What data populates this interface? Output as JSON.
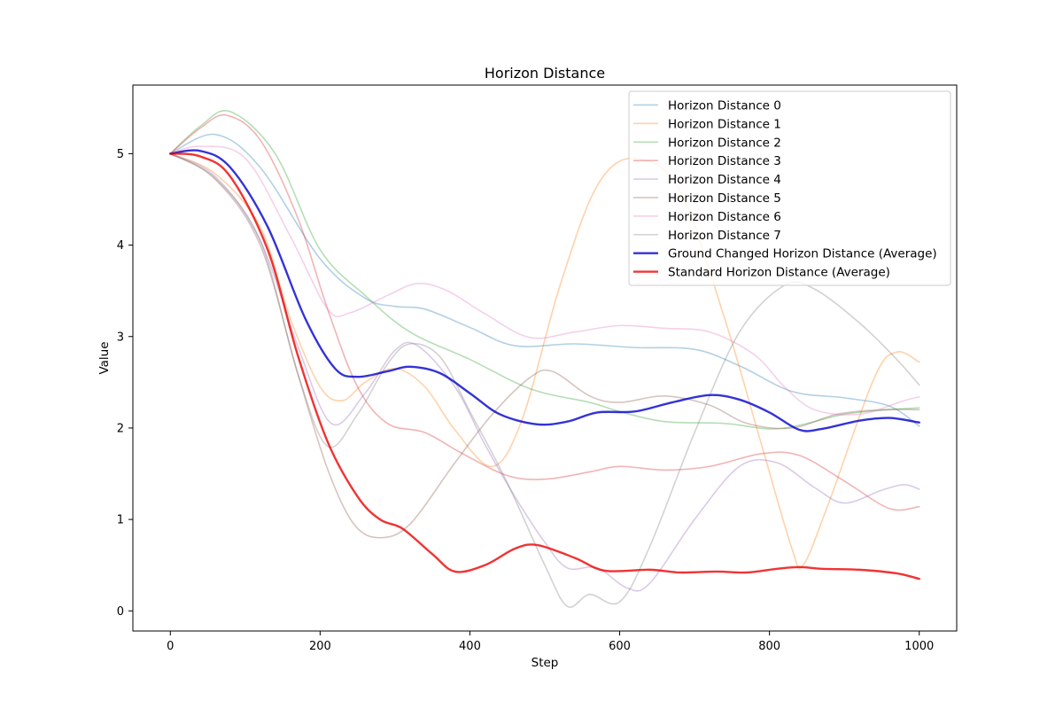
{
  "chart_data": {
    "type": "line",
    "title": "Horizon Distance",
    "xlabel": "Step",
    "ylabel": "Value",
    "xlim": [
      -50,
      1050
    ],
    "ylim": [
      -0.22,
      5.75
    ],
    "xticks": [
      0,
      200,
      400,
      600,
      800,
      1000
    ],
    "yticks": [
      0,
      1,
      2,
      3,
      4,
      5
    ],
    "legend_position": "top-right",
    "grid": false,
    "series": [
      {
        "name": "Horizon Distance 0",
        "color": "#1f77b4",
        "alpha": 0.35,
        "width": 1.6,
        "points": [
          [
            0,
            5.0
          ],
          [
            60,
            5.21
          ],
          [
            120,
            4.85
          ],
          [
            200,
            3.85
          ],
          [
            260,
            3.42
          ],
          [
            300,
            3.33
          ],
          [
            340,
            3.3
          ],
          [
            400,
            3.1
          ],
          [
            460,
            2.9
          ],
          [
            540,
            2.92
          ],
          [
            620,
            2.88
          ],
          [
            700,
            2.86
          ],
          [
            760,
            2.68
          ],
          [
            830,
            2.4
          ],
          [
            900,
            2.33
          ],
          [
            960,
            2.24
          ],
          [
            1000,
            2.02
          ]
        ]
      },
      {
        "name": "Horizon Distance 1",
        "color": "#ff7f0e",
        "alpha": 0.35,
        "width": 1.6,
        "points": [
          [
            0,
            5.0
          ],
          [
            60,
            4.78
          ],
          [
            120,
            4.2
          ],
          [
            160,
            3.2
          ],
          [
            200,
            2.45
          ],
          [
            230,
            2.3
          ],
          [
            260,
            2.5
          ],
          [
            300,
            2.65
          ],
          [
            340,
            2.45
          ],
          [
            380,
            1.98
          ],
          [
            430,
            1.58
          ],
          [
            470,
            2.1
          ],
          [
            520,
            3.55
          ],
          [
            570,
            4.65
          ],
          [
            620,
            4.95
          ],
          [
            680,
            4.6
          ],
          [
            740,
            3.2
          ],
          [
            790,
            1.8
          ],
          [
            830,
            0.68
          ],
          [
            845,
            0.5
          ],
          [
            880,
            1.2
          ],
          [
            940,
            2.55
          ],
          [
            970,
            2.83
          ],
          [
            1000,
            2.72
          ]
        ]
      },
      {
        "name": "Horizon Distance 2",
        "color": "#2ca02c",
        "alpha": 0.35,
        "width": 1.6,
        "points": [
          [
            0,
            5.0
          ],
          [
            40,
            5.3
          ],
          [
            80,
            5.46
          ],
          [
            140,
            5.0
          ],
          [
            200,
            3.95
          ],
          [
            260,
            3.45
          ],
          [
            320,
            3.05
          ],
          [
            400,
            2.75
          ],
          [
            460,
            2.5
          ],
          [
            500,
            2.38
          ],
          [
            560,
            2.28
          ],
          [
            600,
            2.18
          ],
          [
            660,
            2.07
          ],
          [
            740,
            2.05
          ],
          [
            800,
            1.99
          ],
          [
            840,
            2.03
          ],
          [
            900,
            2.15
          ],
          [
            960,
            2.2
          ],
          [
            1000,
            2.22
          ]
        ]
      },
      {
        "name": "Horizon Distance 3",
        "color": "#d62728",
        "alpha": 0.35,
        "width": 1.6,
        "points": [
          [
            0,
            5.0
          ],
          [
            40,
            5.28
          ],
          [
            75,
            5.42
          ],
          [
            120,
            5.15
          ],
          [
            170,
            4.3
          ],
          [
            210,
            3.3
          ],
          [
            250,
            2.45
          ],
          [
            290,
            2.05
          ],
          [
            340,
            1.95
          ],
          [
            390,
            1.72
          ],
          [
            450,
            1.48
          ],
          [
            500,
            1.44
          ],
          [
            560,
            1.52
          ],
          [
            600,
            1.58
          ],
          [
            660,
            1.54
          ],
          [
            720,
            1.58
          ],
          [
            790,
            1.72
          ],
          [
            840,
            1.7
          ],
          [
            900,
            1.42
          ],
          [
            960,
            1.12
          ],
          [
            1000,
            1.14
          ]
        ]
      },
      {
        "name": "Horizon Distance 4",
        "color": "#9467bd",
        "alpha": 0.35,
        "width": 1.6,
        "points": [
          [
            0,
            5.0
          ],
          [
            60,
            4.75
          ],
          [
            120,
            4.05
          ],
          [
            170,
            2.9
          ],
          [
            215,
            2.05
          ],
          [
            260,
            2.38
          ],
          [
            300,
            2.85
          ],
          [
            330,
            2.9
          ],
          [
            380,
            2.45
          ],
          [
            420,
            1.82
          ],
          [
            460,
            1.25
          ],
          [
            500,
            0.75
          ],
          [
            530,
            0.47
          ],
          [
            570,
            0.47
          ],
          [
            610,
            0.25
          ],
          [
            640,
            0.3
          ],
          [
            700,
            1.0
          ],
          [
            760,
            1.58
          ],
          [
            810,
            1.62
          ],
          [
            860,
            1.35
          ],
          [
            900,
            1.18
          ],
          [
            950,
            1.32
          ],
          [
            980,
            1.38
          ],
          [
            1000,
            1.33
          ]
        ]
      },
      {
        "name": "Horizon Distance 5",
        "color": "#8c564b",
        "alpha": 0.35,
        "width": 1.6,
        "points": [
          [
            0,
            5.0
          ],
          [
            60,
            4.72
          ],
          [
            120,
            4.0
          ],
          [
            170,
            2.6
          ],
          [
            210,
            1.55
          ],
          [
            245,
            0.95
          ],
          [
            280,
            0.8
          ],
          [
            320,
            0.95
          ],
          [
            380,
            1.62
          ],
          [
            430,
            2.15
          ],
          [
            480,
            2.55
          ],
          [
            510,
            2.62
          ],
          [
            560,
            2.35
          ],
          [
            600,
            2.28
          ],
          [
            660,
            2.35
          ],
          [
            720,
            2.25
          ],
          [
            770,
            2.05
          ],
          [
            830,
            2.0
          ],
          [
            890,
            2.15
          ],
          [
            950,
            2.2
          ],
          [
            1000,
            2.2
          ]
        ]
      },
      {
        "name": "Horizon Distance 6",
        "color": "#e377c2",
        "alpha": 0.35,
        "width": 1.6,
        "points": [
          [
            0,
            5.0
          ],
          [
            40,
            5.08
          ],
          [
            100,
            4.95
          ],
          [
            160,
            4.1
          ],
          [
            210,
            3.3
          ],
          [
            240,
            3.26
          ],
          [
            290,
            3.45
          ],
          [
            330,
            3.58
          ],
          [
            370,
            3.5
          ],
          [
            420,
            3.25
          ],
          [
            480,
            2.99
          ],
          [
            540,
            3.05
          ],
          [
            600,
            3.12
          ],
          [
            660,
            3.09
          ],
          [
            720,
            3.05
          ],
          [
            780,
            2.8
          ],
          [
            820,
            2.45
          ],
          [
            860,
            2.2
          ],
          [
            920,
            2.15
          ],
          [
            980,
            2.3
          ],
          [
            1000,
            2.34
          ]
        ]
      },
      {
        "name": "Horizon Distance 7",
        "color": "#7f7f7f",
        "alpha": 0.35,
        "width": 1.6,
        "points": [
          [
            0,
            5.0
          ],
          [
            60,
            4.73
          ],
          [
            120,
            4.05
          ],
          [
            170,
            2.6
          ],
          [
            210,
            1.8
          ],
          [
            250,
            2.15
          ],
          [
            290,
            2.7
          ],
          [
            320,
            2.92
          ],
          [
            360,
            2.78
          ],
          [
            400,
            2.18
          ],
          [
            450,
            1.4
          ],
          [
            500,
            0.5
          ],
          [
            530,
            0.05
          ],
          [
            560,
            0.18
          ],
          [
            600,
            0.1
          ],
          [
            640,
            0.7
          ],
          [
            700,
            1.95
          ],
          [
            760,
            3.05
          ],
          [
            820,
            3.56
          ],
          [
            860,
            3.52
          ],
          [
            920,
            3.15
          ],
          [
            970,
            2.75
          ],
          [
            1000,
            2.47
          ]
        ]
      },
      {
        "name": "Ground Changed Horizon Distance (Average)",
        "color": "#0000cc",
        "alpha": 0.8,
        "width": 2.4,
        "points": [
          [
            0,
            5.0
          ],
          [
            40,
            5.03
          ],
          [
            80,
            4.85
          ],
          [
            130,
            4.2
          ],
          [
            180,
            3.2
          ],
          [
            220,
            2.65
          ],
          [
            250,
            2.56
          ],
          [
            290,
            2.62
          ],
          [
            320,
            2.67
          ],
          [
            360,
            2.6
          ],
          [
            400,
            2.38
          ],
          [
            440,
            2.15
          ],
          [
            490,
            2.04
          ],
          [
            530,
            2.07
          ],
          [
            570,
            2.17
          ],
          [
            620,
            2.18
          ],
          [
            670,
            2.28
          ],
          [
            720,
            2.36
          ],
          [
            760,
            2.31
          ],
          [
            800,
            2.17
          ],
          [
            840,
            1.98
          ],
          [
            870,
            1.99
          ],
          [
            920,
            2.08
          ],
          [
            960,
            2.11
          ],
          [
            1000,
            2.06
          ]
        ]
      },
      {
        "name": "Standard Horizon Distance (Average)",
        "color": "#ee0000",
        "alpha": 0.8,
        "width": 2.4,
        "points": [
          [
            0,
            5.0
          ],
          [
            40,
            4.97
          ],
          [
            80,
            4.75
          ],
          [
            130,
            3.95
          ],
          [
            170,
            2.8
          ],
          [
            210,
            1.85
          ],
          [
            250,
            1.25
          ],
          [
            280,
            1.0
          ],
          [
            310,
            0.9
          ],
          [
            350,
            0.62
          ],
          [
            380,
            0.43
          ],
          [
            420,
            0.5
          ],
          [
            460,
            0.68
          ],
          [
            490,
            0.72
          ],
          [
            540,
            0.58
          ],
          [
            580,
            0.44
          ],
          [
            640,
            0.45
          ],
          [
            680,
            0.42
          ],
          [
            730,
            0.43
          ],
          [
            770,
            0.42
          ],
          [
            810,
            0.46
          ],
          [
            840,
            0.48
          ],
          [
            870,
            0.46
          ],
          [
            920,
            0.45
          ],
          [
            970,
            0.41
          ],
          [
            1000,
            0.35
          ]
        ]
      }
    ]
  }
}
